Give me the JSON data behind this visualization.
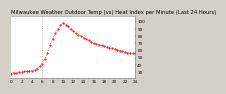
{
  "title": "Milwaukee Weather Outdoor Temp (vs) Heat Index per Minute (Last 24 Hours)",
  "background_color": "#d4d0c8",
  "plot_bg_color": "#ffffff",
  "line_color": "#ff0000",
  "vline_color": "#a0a0a0",
  "vline_x": 6,
  "y_ticks": [
    30,
    40,
    50,
    60,
    70,
    80,
    90,
    100
  ],
  "ylim": [
    22,
    108
  ],
  "xlim": [
    0,
    24
  ],
  "x_values": [
    0,
    0.5,
    1,
    1.5,
    2,
    2.5,
    3,
    3.5,
    4,
    4.5,
    5,
    5.5,
    6,
    6.5,
    7,
    7.5,
    8,
    8.5,
    9,
    9.5,
    10,
    10.5,
    11,
    11.5,
    12,
    12.5,
    13,
    13.5,
    14,
    14.5,
    15,
    15.5,
    16,
    16.5,
    17,
    17.5,
    18,
    18.5,
    19,
    19.5,
    20,
    20.5,
    21,
    21.5,
    22,
    22.5,
    23,
    23.5,
    24
  ],
  "y_values": [
    28,
    29,
    29,
    30,
    30,
    31,
    31,
    32,
    32,
    33,
    35,
    38,
    42,
    48,
    56,
    67,
    76,
    84,
    90,
    95,
    98,
    96,
    94,
    90,
    87,
    84,
    82,
    80,
    78,
    76,
    74,
    72,
    70,
    69,
    68,
    67,
    66,
    65,
    64,
    63,
    62,
    61,
    60,
    59,
    58,
    57,
    57,
    56,
    56
  ],
  "title_fontsize": 3.8,
  "tick_fontsize": 3.0,
  "linewidth": 0.5,
  "markersize": 1.0
}
